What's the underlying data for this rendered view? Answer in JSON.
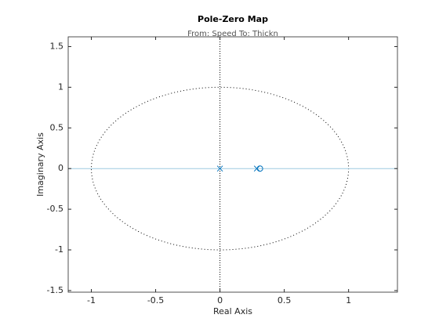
{
  "chart_data": {
    "type": "pole-zero",
    "title": "Pole-Zero Map",
    "subtitle": "From: Speed  To: Thickn",
    "xlabel": "Real Axis",
    "ylabel": "Imaginary Axis",
    "series": [
      {
        "marker": "x",
        "color": "#0072bd",
        "x": [
          0,
          0.287
        ],
        "values": [
          0,
          0
        ]
      },
      {
        "marker": "o",
        "color": "#0072bd",
        "x": [
          0.311
        ],
        "values": [
          0
        ]
      }
    ],
    "xlim": [
      -1.18,
      1.38
    ],
    "xticks": [
      -1,
      -0.5,
      0,
      0.5,
      1
    ],
    "ylim": [
      -1.52,
      1.62
    ],
    "yticks": [
      -1.5,
      -1,
      -0.5,
      0,
      0.5,
      1,
      1.5
    ],
    "unit_circle": true,
    "zero_axis_color": "#9ecae1",
    "grid": false
  }
}
